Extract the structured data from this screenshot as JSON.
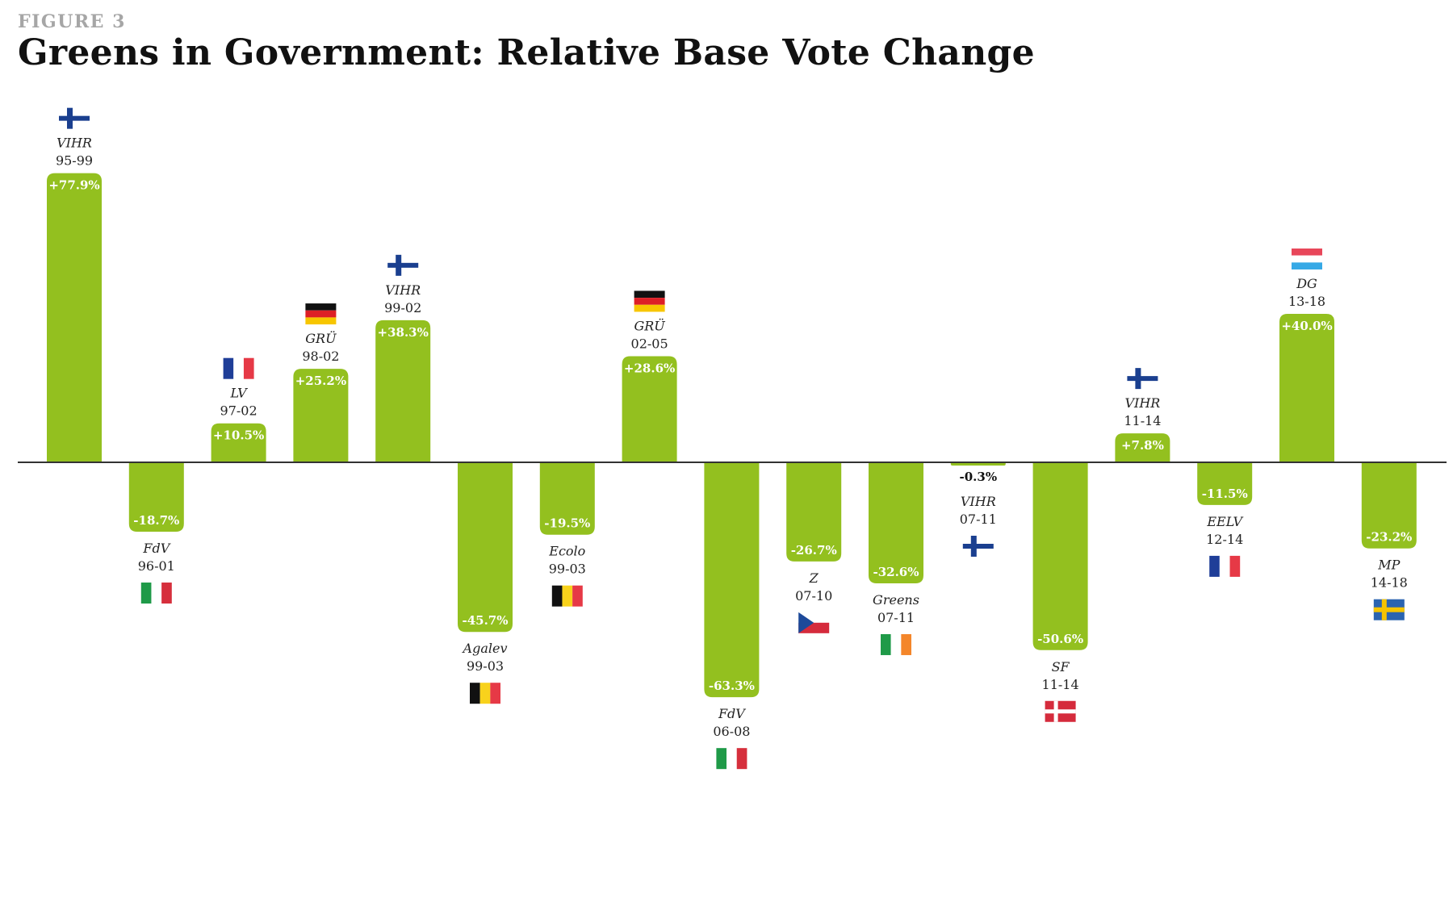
{
  "figure_label": "FIGURE 3",
  "title": "Greens in Government: Relative Base Vote Change",
  "colors": {
    "bar": "#93c01f",
    "axis": "#333333",
    "label": "#ffffff",
    "text": "#222222"
  },
  "chart_data": {
    "type": "bar",
    "title": "Greens in Government: Relative Base Vote Change",
    "xlabel": "",
    "ylabel": "",
    "unit": "%",
    "grid": false,
    "legend": "none",
    "ylim": [
      -75,
      90
    ],
    "bars": [
      {
        "party": "VIHR",
        "period": "95-99",
        "label": "+77.9%",
        "value": 77.9,
        "flag": "fi"
      },
      {
        "party": "FdV",
        "period": "96-01",
        "label": "-18.7%",
        "value": -18.7,
        "flag": "it"
      },
      {
        "party": "LV",
        "period": "97-02",
        "label": "+10.5%",
        "value": 10.5,
        "flag": "fr"
      },
      {
        "party": "GRÜ",
        "period": "98-02",
        "label": "+25.2%",
        "value": 25.2,
        "flag": "de"
      },
      {
        "party": "VIHR",
        "period": "99-02",
        "label": "+38.3%",
        "value": 38.3,
        "flag": "fi"
      },
      {
        "party": "Agalev",
        "period": "99-03",
        "label": "-45.7%",
        "value": -45.7,
        "flag": "be"
      },
      {
        "party": "Ecolo",
        "period": "99-03",
        "label": "-19.5%",
        "value": -19.5,
        "flag": "be"
      },
      {
        "party": "GRÜ",
        "period": "02-05",
        "label": "+28.6%",
        "value": 28.6,
        "flag": "de"
      },
      {
        "party": "FdV",
        "period": "06-08",
        "label": "-63.3%",
        "value": -63.3,
        "flag": "it"
      },
      {
        "party": "Z",
        "period": "07-10",
        "label": "-26.7%",
        "value": -26.7,
        "flag": "cz"
      },
      {
        "party": "Greens",
        "period": "07-11",
        "label": "-32.6%",
        "value": -32.6,
        "flag": "ie"
      },
      {
        "party": "VIHR",
        "period": "07-11",
        "label": "-0.3%",
        "value": -0.3,
        "flag": "fi"
      },
      {
        "party": "SF",
        "period": "11-14",
        "label": "-50.6%",
        "value": -50.6,
        "flag": "dk"
      },
      {
        "party": "VIHR",
        "period": "11-14",
        "label": "+7.8%",
        "value": 7.8,
        "flag": "fi"
      },
      {
        "party": "EELV",
        "period": "12-14",
        "label": "-11.5%",
        "value": -11.5,
        "flag": "fr"
      },
      {
        "party": "DG",
        "period": "13-18",
        "label": "+40.0%",
        "value": 40.0,
        "flag": "lu"
      },
      {
        "party": "MP",
        "period": "14-18",
        "label": "-23.2%",
        "value": -23.2,
        "flag": "se"
      }
    ]
  }
}
